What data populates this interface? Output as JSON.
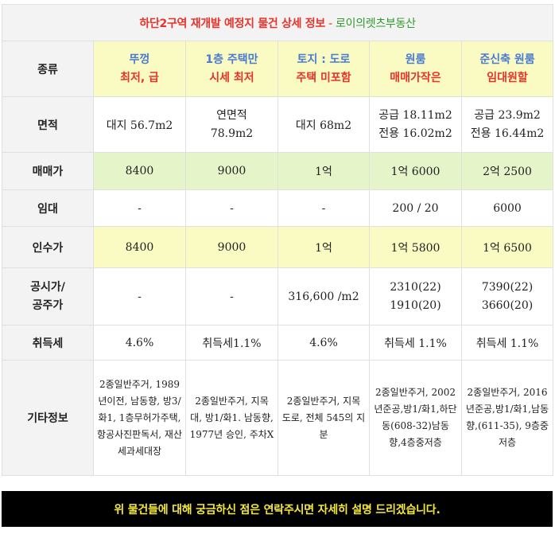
{
  "title": {
    "main": "하단2구역 재개발 예정지 물건 상세 정보",
    "sep": " - ",
    "agency": "로이의렛츠부동산"
  },
  "columns": [
    {
      "line1": "뚜껑",
      "line2": "최저, 급"
    },
    {
      "line1": "1층 주택만",
      "line2": "시세 최저"
    },
    {
      "line1": "토지 : 도로",
      "line2": "주택 미포함"
    },
    {
      "line1": "원룸",
      "line2": "매매가작은"
    },
    {
      "line1": "준신축 원룸",
      "line2": "임대원할"
    }
  ],
  "rows": {
    "type": {
      "label": "종류"
    },
    "area": {
      "label": "면적",
      "values": [
        [
          "대지 56.7m2"
        ],
        [
          "연면적",
          "78.9m2"
        ],
        [
          "대지 68m2"
        ],
        [
          "공급 18.11m2",
          "전용 16.02m2"
        ],
        [
          "공급 23.9m2",
          "전용 16.44m2"
        ]
      ]
    },
    "sale": {
      "label": "매매가",
      "values": [
        "8400",
        "9000",
        "1억",
        "1억 6000",
        "2억 2500"
      ]
    },
    "rent": {
      "label": "임대",
      "values": [
        "-",
        "-",
        "-",
        "200 / 20",
        "6000"
      ]
    },
    "takeover": {
      "label": "인수가",
      "values": [
        "8400",
        "9000",
        "1억",
        "1억 5800",
        "1억 6500"
      ]
    },
    "official": {
      "label1": "공시가/",
      "label2": "공주가",
      "values": [
        [
          "-"
        ],
        [
          "-"
        ],
        [
          "316,600 /m2"
        ],
        [
          "2310(22)",
          "1910(20)"
        ],
        [
          "7390(22)",
          "3660(20)"
        ]
      ]
    },
    "tax": {
      "label": "취득세",
      "values": [
        "4.6%",
        "취득세1.1%",
        "4.6%",
        "취득세 1.1%",
        "취득세 1.1%"
      ]
    },
    "etc": {
      "label": "기타정보",
      "values": [
        "2종일반주거, 1989년이전, 남동향, 방3/화1, 1층무허가주택, 항공사진판독서, 재산세과세대장",
        "2종일반주거, 지목 대, 방1/화1. 남동향, 1977년 승인, 주차X",
        "2종일반주거, 지목 도로, 전체 545의 지분",
        "2종일반주거, 2002년준공,방1/화1,하단동(608-32)남동향,4층중저층",
        "2종일반주거, 2016년준공,방1/화1,남동향,(611-35), 9층중저층"
      ]
    }
  },
  "footer": "위 물건들에 대해 궁금하신 점은 연락주시면 자세히 설명 드리겠습니다."
}
